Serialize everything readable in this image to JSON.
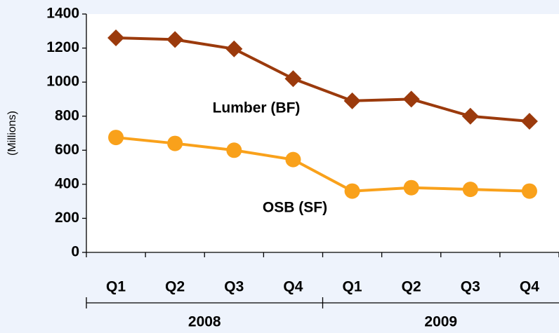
{
  "chart_data": {
    "type": "line",
    "y_label": "(Millions)",
    "categories": [
      "Q1",
      "Q2",
      "Q3",
      "Q4",
      "Q1",
      "Q2",
      "Q3",
      "Q4"
    ],
    "category_groups": [
      "2008",
      "2009"
    ],
    "series": [
      {
        "name": "Lumber (BF)",
        "color": "#9b3a0c",
        "marker": "diamond",
        "values": [
          1260,
          1250,
          1195,
          1020,
          890,
          900,
          800,
          770
        ]
      },
      {
        "name": "OSB (SF)",
        "color": "#f9a11b",
        "marker": "circle",
        "values": [
          675,
          640,
          600,
          545,
          360,
          380,
          370,
          360
        ]
      }
    ],
    "ylim": [
      0,
      1400
    ],
    "yticks": [
      0,
      200,
      400,
      600,
      800,
      1000,
      1200,
      1400
    ],
    "grid": false
  }
}
